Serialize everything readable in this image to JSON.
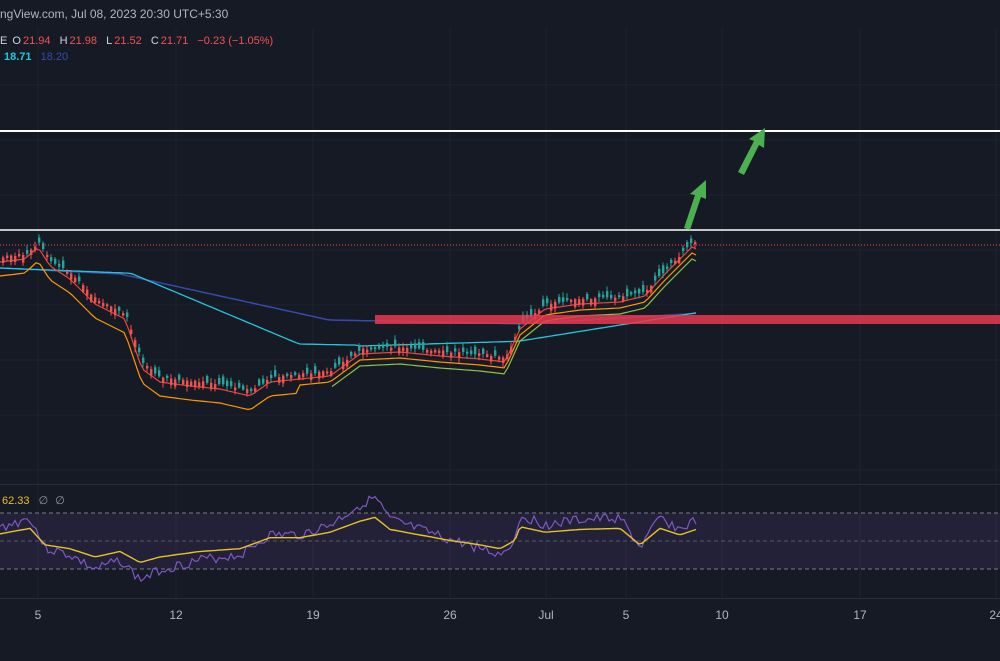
{
  "header": {
    "source_line": "ngView.com, Jul 08, 2023 20:30 UTC+5:30"
  },
  "ohlc": {
    "prefix": "E",
    "o_label": "O",
    "o_value": "21.94",
    "h_label": "H",
    "h_value": "21.98",
    "l_label": "L",
    "l_value": "21.52",
    "c_label": "C",
    "c_value": "21.71",
    "change": "−0.23 (−1.05%)"
  },
  "indicator": {
    "value1": "18.71",
    "value2": "18.20",
    "color1": "#26c6da",
    "color2": "#3949ab"
  },
  "rsi": {
    "value": "62.33",
    "extra1": "∅",
    "extra2": "∅",
    "color": "#e6c229"
  },
  "colors": {
    "background": "#161a25",
    "up": "#26a69a",
    "down": "#ef5350",
    "level_line": "#ffffff",
    "resistance_zone": "#e8384f",
    "arrow": "#4caf50",
    "ema_short": "#f44336",
    "ema_mid": "#ff9800",
    "ema_long": "#26c6da",
    "ema_200": "#3949ab",
    "rsi_line": "#7e57c2",
    "rsi_ma": "#e6c229"
  },
  "chart_data": {
    "type": "candlestick",
    "x_tick_labels": [
      "5",
      "12",
      "19",
      "26",
      "Jul",
      "5",
      "10",
      "17",
      "24"
    ],
    "horizontal_levels": [
      {
        "name": "upper-target-line"
      },
      {
        "name": "current-high-line"
      }
    ],
    "resistance_zone": {
      "name": "support-zone"
    },
    "annotations": [
      "up-arrow",
      "up-arrow"
    ],
    "rsi": {
      "upper_band": 70,
      "mid": 50,
      "lower_band": 30,
      "last": 62.33
    }
  }
}
